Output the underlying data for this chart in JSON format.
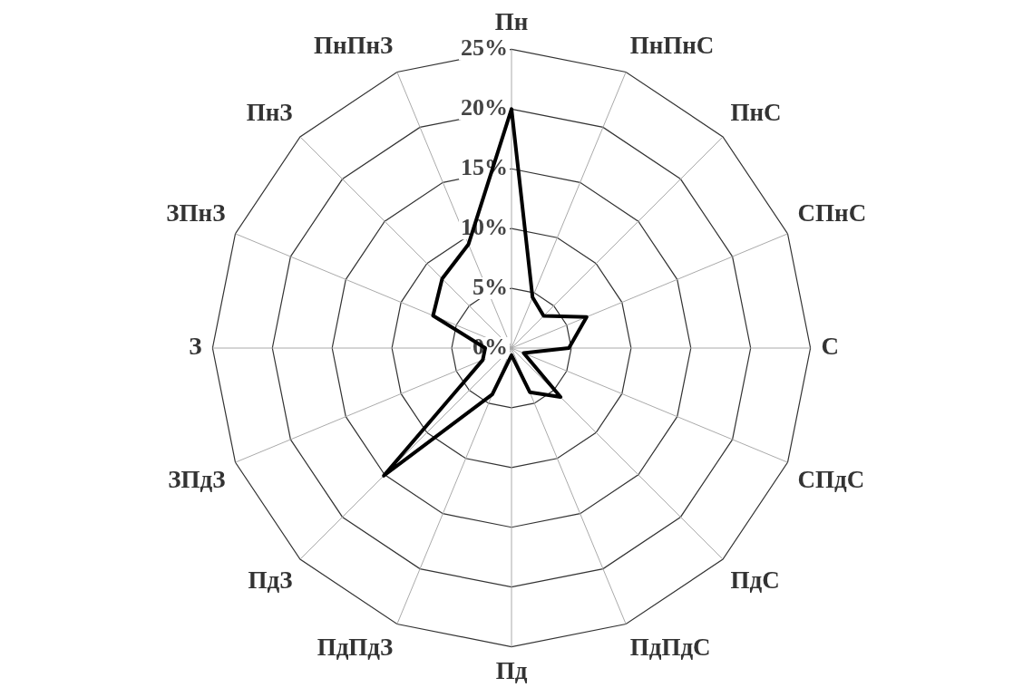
{
  "chart_data": {
    "type": "radar",
    "categories": [
      "Пн",
      "ПнПнС",
      "ПнС",
      "СПнС",
      "С",
      "СПдС",
      "ПдС",
      "ПдПдС",
      "Пд",
      "ПдПдЗ",
      "ПдЗ",
      "ЗПдЗ",
      "З",
      "ЗПнЗ",
      "ПнЗ",
      "ПнПнЗ"
    ],
    "series": [
      {
        "color": "#000000",
        "values": [
          20,
          4.6,
          3.8,
          6.8,
          4.8,
          1.1,
          5.8,
          4.0,
          0.6,
          4.2,
          15.1,
          2.6,
          2.2,
          7.1,
          8.2,
          9.4
        ]
      }
    ],
    "ylim": [
      0,
      25
    ],
    "yticks": [
      {
        "value": 0,
        "label": "0%"
      },
      {
        "value": 5,
        "label": "5%"
      },
      {
        "value": 10,
        "label": "10%"
      },
      {
        "value": 15,
        "label": "15%"
      },
      {
        "value": 20,
        "label": "20%"
      },
      {
        "value": 25,
        "label": "25%"
      }
    ],
    "grid": true,
    "legend": false,
    "marker": "none",
    "line_style": "solid"
  }
}
